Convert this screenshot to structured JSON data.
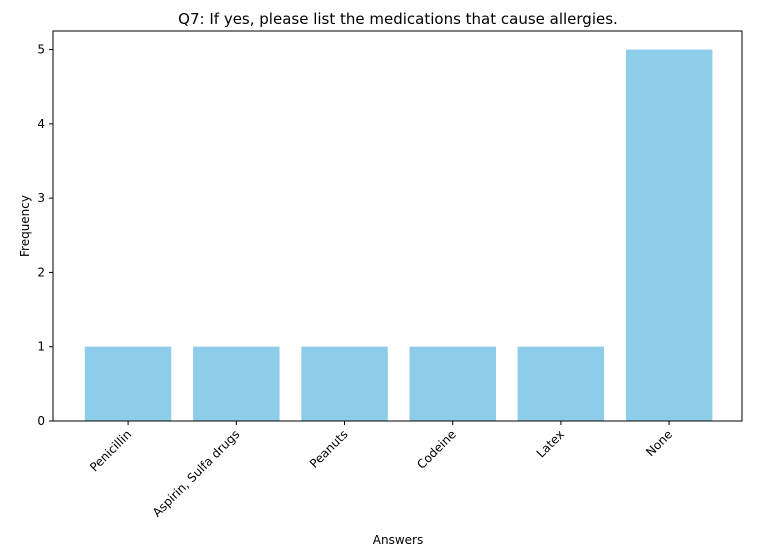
{
  "chart_data": {
    "type": "bar",
    "title": "Q7: If yes, please list the medications that cause allergies.",
    "xlabel": "Answers",
    "ylabel": "Frequency",
    "categories": [
      "Penicillin",
      "Aspirin, Sulfa drugs",
      "Peanuts",
      "Codeine",
      "Latex",
      "None"
    ],
    "values": [
      1,
      1,
      1,
      1,
      1,
      5
    ],
    "ylim": [
      0,
      5.25
    ],
    "yticks": [
      0,
      1,
      2,
      3,
      4,
      5
    ],
    "grid": false,
    "legend": "none",
    "bar_color": "#8ecde9"
  }
}
